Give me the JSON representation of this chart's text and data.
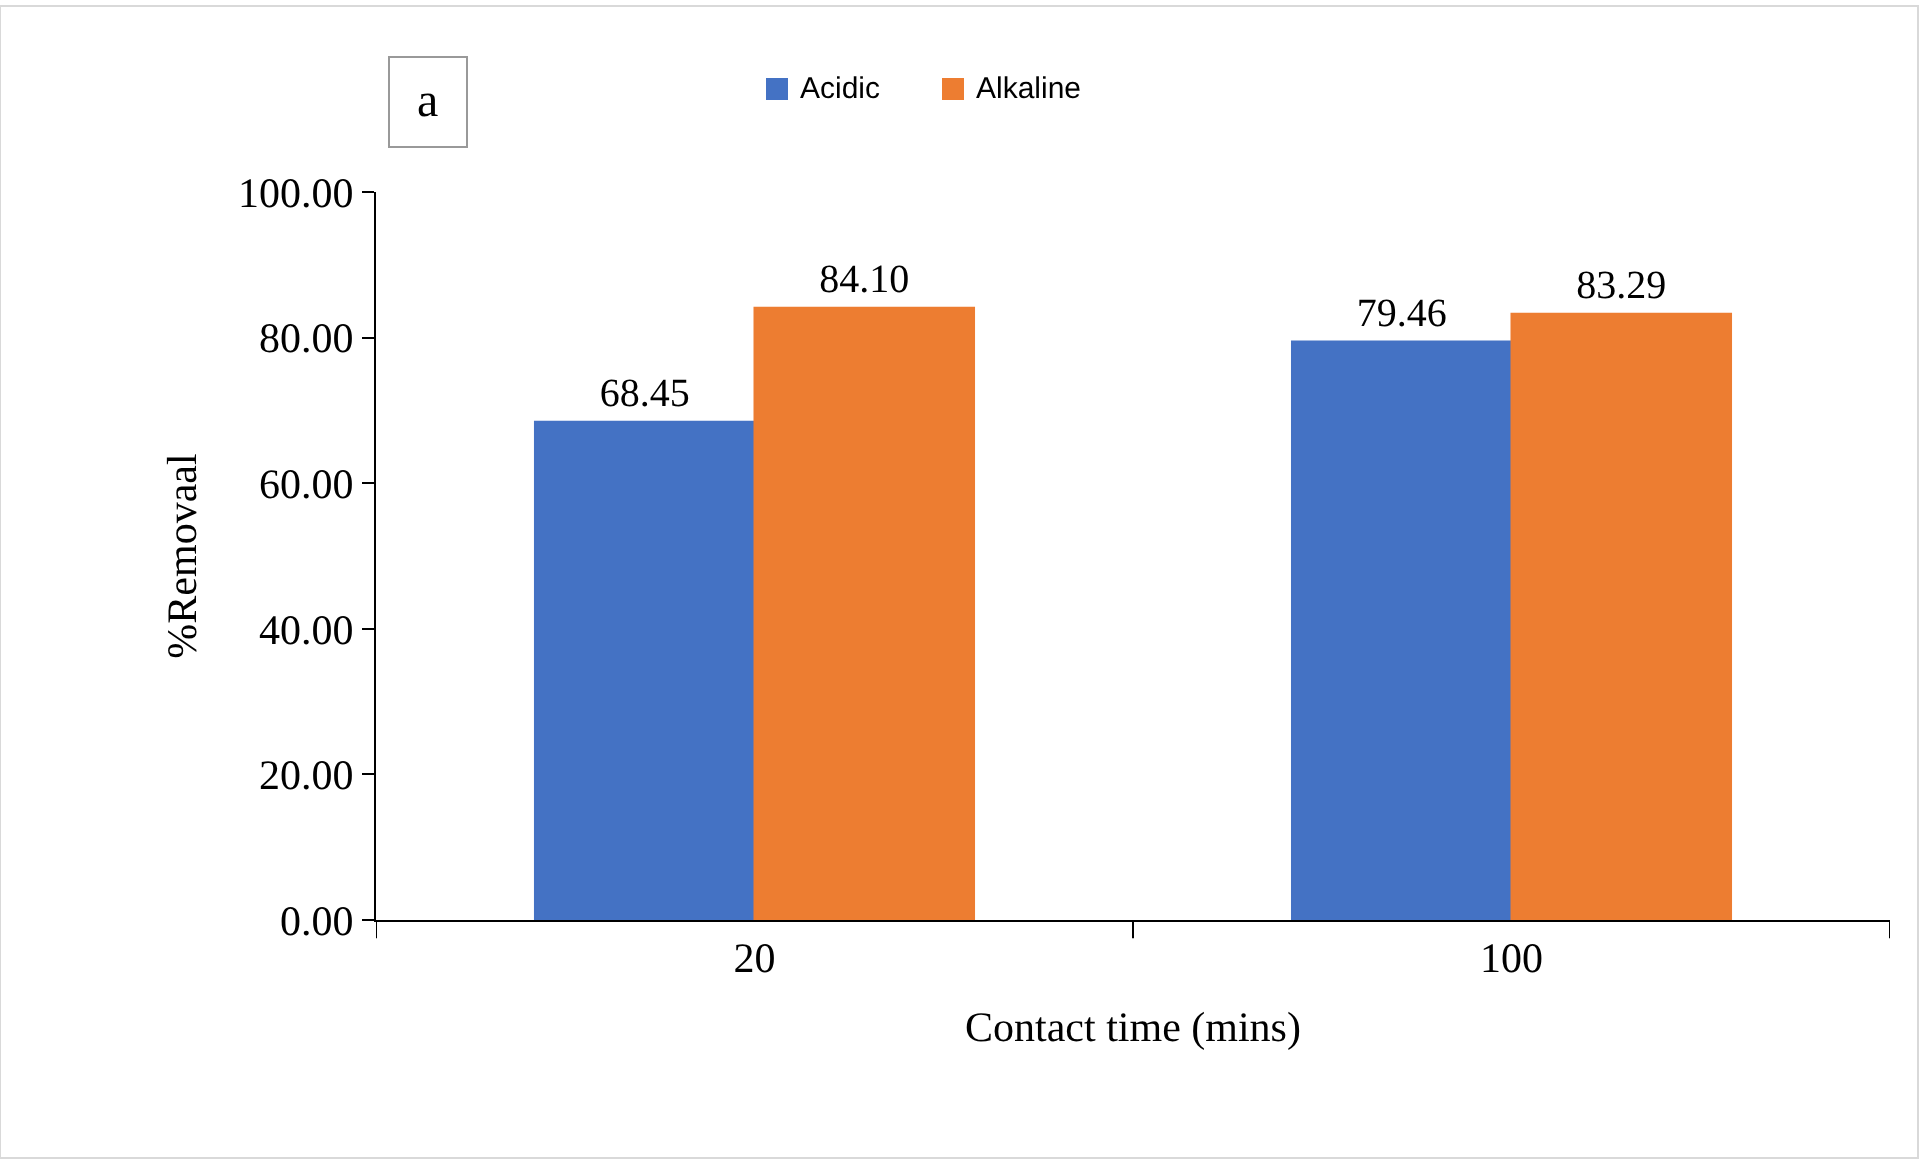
{
  "chart_data": {
    "type": "bar",
    "xlabel": "Contact time (mins)",
    "ylabel": "%Removaal",
    "categories": [
      "20",
      "100"
    ],
    "series": [
      {
        "name": "Acidic",
        "color": "#4472c4",
        "values": [
          68.45,
          79.46
        ],
        "value_labels": [
          "68.45",
          "79.46"
        ]
      },
      {
        "name": "Alkaline",
        "color": "#ed7d31",
        "values": [
          84.1,
          83.29
        ],
        "value_labels": [
          "84.10",
          "83.29"
        ]
      }
    ],
    "ylim": [
      0,
      100
    ],
    "yticks": [
      {
        "value": 0,
        "label": "0.00"
      },
      {
        "value": 20,
        "label": "20.00"
      },
      {
        "value": 40,
        "label": "40.00"
      },
      {
        "value": 60,
        "label": "60.00"
      },
      {
        "value": 80,
        "label": "80.00"
      },
      {
        "value": 100,
        "label": "100.00"
      }
    ],
    "legend": "top",
    "annotations": [
      "a"
    ]
  }
}
